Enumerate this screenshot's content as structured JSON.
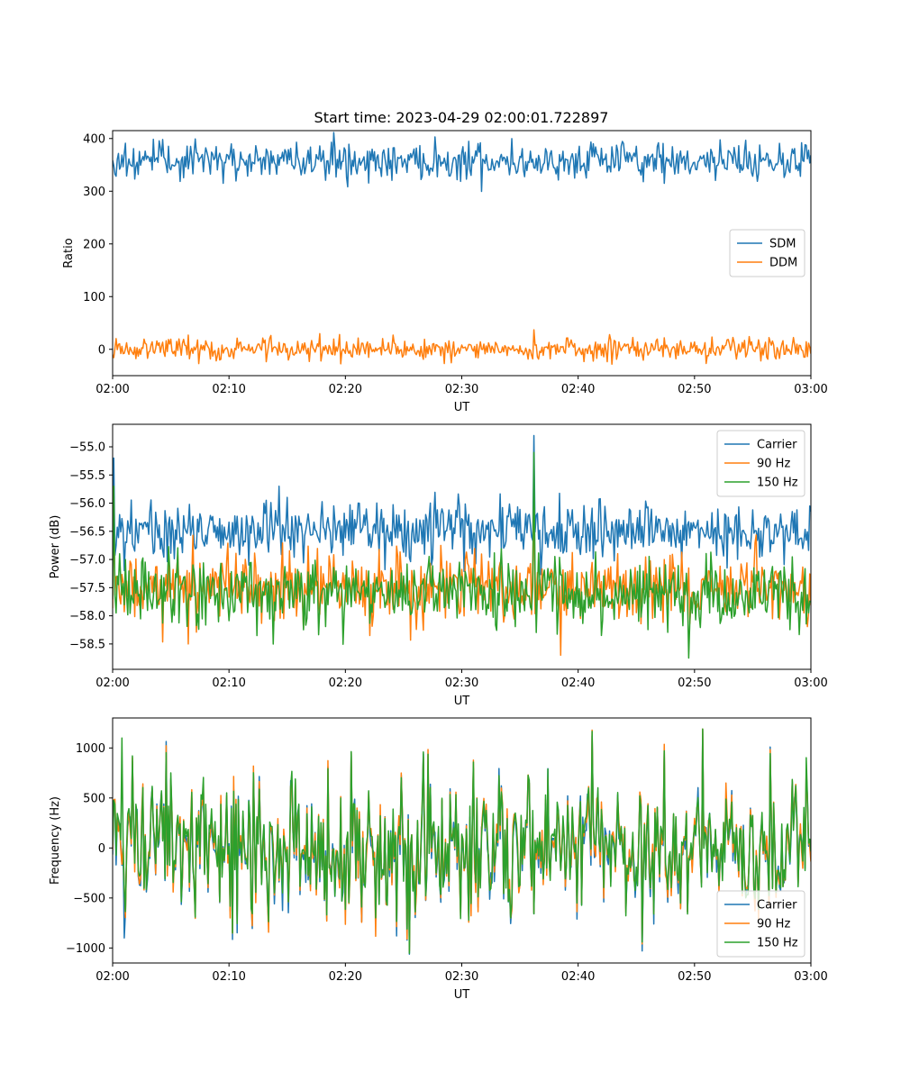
{
  "figure": {
    "title": "Start time: 2023-04-29 02:00:01.722897"
  },
  "colors": {
    "blue": "#1f77b4",
    "orange": "#ff7f0e",
    "green": "#2ca02c"
  },
  "chart_data": [
    {
      "type": "line",
      "title": "Start time: 2023-04-29 02:00:01.722897",
      "xlabel": "UT",
      "ylabel": "Ratio",
      "xlim": [
        "02:00",
        "03:00"
      ],
      "xticks": [
        "02:00",
        "02:10",
        "02:20",
        "02:30",
        "02:40",
        "02:50",
        "03:00"
      ],
      "ylim": [
        -50,
        415
      ],
      "yticks": [
        0,
        100,
        200,
        300,
        400
      ],
      "ytick_labels": [
        "0",
        "100",
        "200",
        "300",
        "400"
      ],
      "grid": false,
      "legend_position": "center-right",
      "series": [
        {
          "name": "SDM",
          "color": "#1f77b4",
          "center": 358,
          "spread": 18,
          "spikes": [
            [
              9.5,
              315
            ],
            [
              15.8,
              393
            ],
            [
              45.6,
              318
            ],
            [
              59.2,
              392
            ]
          ]
        },
        {
          "name": "DDM",
          "color": "#ff7f0e",
          "center": 0,
          "spread": 10,
          "spikes": [
            [
              6.5,
              27
            ],
            [
              19.5,
              28
            ],
            [
              36.2,
              37
            ],
            [
              28.5,
              -27
            ]
          ]
        }
      ]
    },
    {
      "type": "line",
      "xlabel": "UT",
      "ylabel": "Power (dB)",
      "xlim": [
        "02:00",
        "03:00"
      ],
      "xticks": [
        "02:00",
        "02:10",
        "02:20",
        "02:30",
        "02:40",
        "02:50",
        "03:00"
      ],
      "ylim": [
        -58.95,
        -54.6
      ],
      "yticks": [
        -58.5,
        -58.0,
        -57.5,
        -57.0,
        -56.5,
        -56.0,
        -55.5,
        -55.0
      ],
      "ytick_labels": [
        "−58.5",
        "−58.0",
        "−57.5",
        "−57.0",
        "−56.5",
        "−56.0",
        "−55.5",
        "−55.0"
      ],
      "grid": false,
      "legend_position": "top-right",
      "series": [
        {
          "name": "Carrier",
          "color": "#1f77b4",
          "center": -56.5,
          "spread": 0.28,
          "spikes": [
            [
              0.1,
              -55.2
            ],
            [
              36.2,
              -54.8
            ],
            [
              14.3,
              -55.7
            ]
          ]
        },
        {
          "name": "90 Hz",
          "color": "#ff7f0e",
          "center": -57.5,
          "spread": 0.33,
          "spikes": [
            [
              0.1,
              -55.9
            ],
            [
              36.2,
              -55.7
            ],
            [
              38.5,
              -58.7
            ],
            [
              6.5,
              -58.5
            ]
          ]
        },
        {
          "name": "150 Hz",
          "color": "#2ca02c",
          "center": -57.6,
          "spread": 0.33,
          "spikes": [
            [
              0.1,
              -55.7
            ],
            [
              36.2,
              -55.1
            ],
            [
              49.5,
              -58.75
            ]
          ]
        }
      ]
    },
    {
      "type": "line",
      "xlabel": "UT",
      "ylabel": "Frequency (Hz)",
      "xlim": [
        "02:00",
        "03:00"
      ],
      "xticks": [
        "02:00",
        "02:10",
        "02:20",
        "02:30",
        "02:40",
        "02:50",
        "03:00"
      ],
      "ylim": [
        -1150,
        1300
      ],
      "yticks": [
        -1000,
        -500,
        0,
        500,
        1000
      ],
      "ytick_labels": [
        "−1000",
        "−500",
        "0",
        "500",
        "1000"
      ],
      "grid": false,
      "legend_position": "bottom-right",
      "series": [
        {
          "name": "Carrier",
          "color": "#1f77b4",
          "center": -20,
          "spread": 380,
          "spikes": [
            [
              45.5,
              -1030
            ],
            [
              1.0,
              -900
            ],
            [
              50.7,
              1180
            ]
          ]
        },
        {
          "name": "90 Hz",
          "color": "#ff7f0e",
          "center": 0,
          "spread": 380,
          "spikes": [
            [
              45.5,
              -960
            ],
            [
              50.7,
              1190
            ]
          ]
        },
        {
          "name": "150 Hz",
          "color": "#2ca02c",
          "center": 10,
          "spread": 380,
          "spikes": [
            [
              0.8,
              1100
            ],
            [
              50.7,
              1190
            ],
            [
              45.5,
              -940
            ]
          ]
        }
      ]
    }
  ]
}
